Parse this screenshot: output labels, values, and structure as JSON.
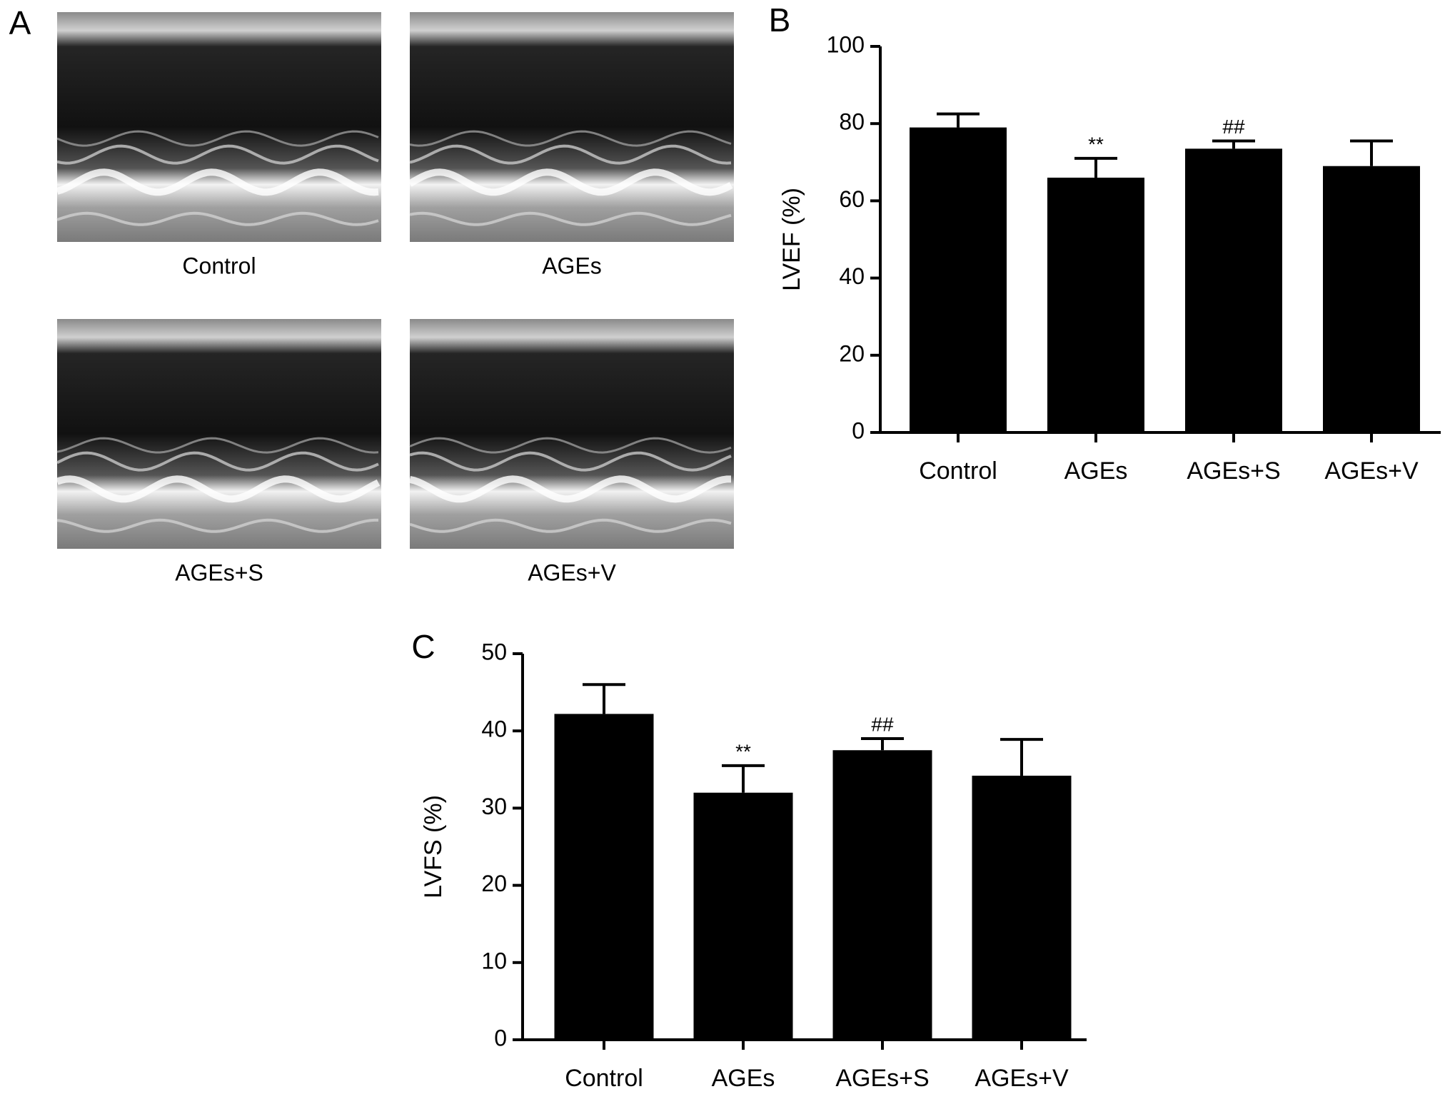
{
  "panel_a": {
    "label": "A",
    "images": [
      {
        "label": "Control"
      },
      {
        "label": "AGEs"
      },
      {
        "label": "AGEs+S"
      },
      {
        "label": "AGEs+V"
      }
    ]
  },
  "chart_data": [
    {
      "type": "bar",
      "panel_label": "B",
      "y_label": "LVEF (%)",
      "categories": [
        "Control",
        "AGEs",
        "AGEs+S",
        "AGEs+V"
      ],
      "series": [
        {
          "color": "#000000",
          "values": [
            79,
            66,
            73.5,
            69
          ],
          "errors": [
            3.5,
            5,
            2,
            6.5
          ],
          "annotations": [
            null,
            "**",
            "##",
            null
          ]
        }
      ],
      "ylim": [
        0,
        100
      ],
      "yticks": [
        0,
        20,
        40,
        60,
        80,
        100
      ],
      "grid": false
    },
    {
      "type": "bar",
      "panel_label": "C",
      "y_label": "LVFS (%)",
      "categories": [
        "Control",
        "AGEs",
        "AGEs+S",
        "AGEs+V"
      ],
      "series": [
        {
          "color": "#000000",
          "values": [
            42.2,
            32,
            37.5,
            34.2
          ],
          "errors": [
            3.8,
            3.5,
            1.5,
            4.7
          ],
          "annotations": [
            null,
            "**",
            "##",
            null
          ]
        }
      ],
      "ylim": [
        0,
        50
      ],
      "yticks": [
        0,
        10,
        20,
        30,
        40,
        50
      ],
      "grid": false
    }
  ]
}
